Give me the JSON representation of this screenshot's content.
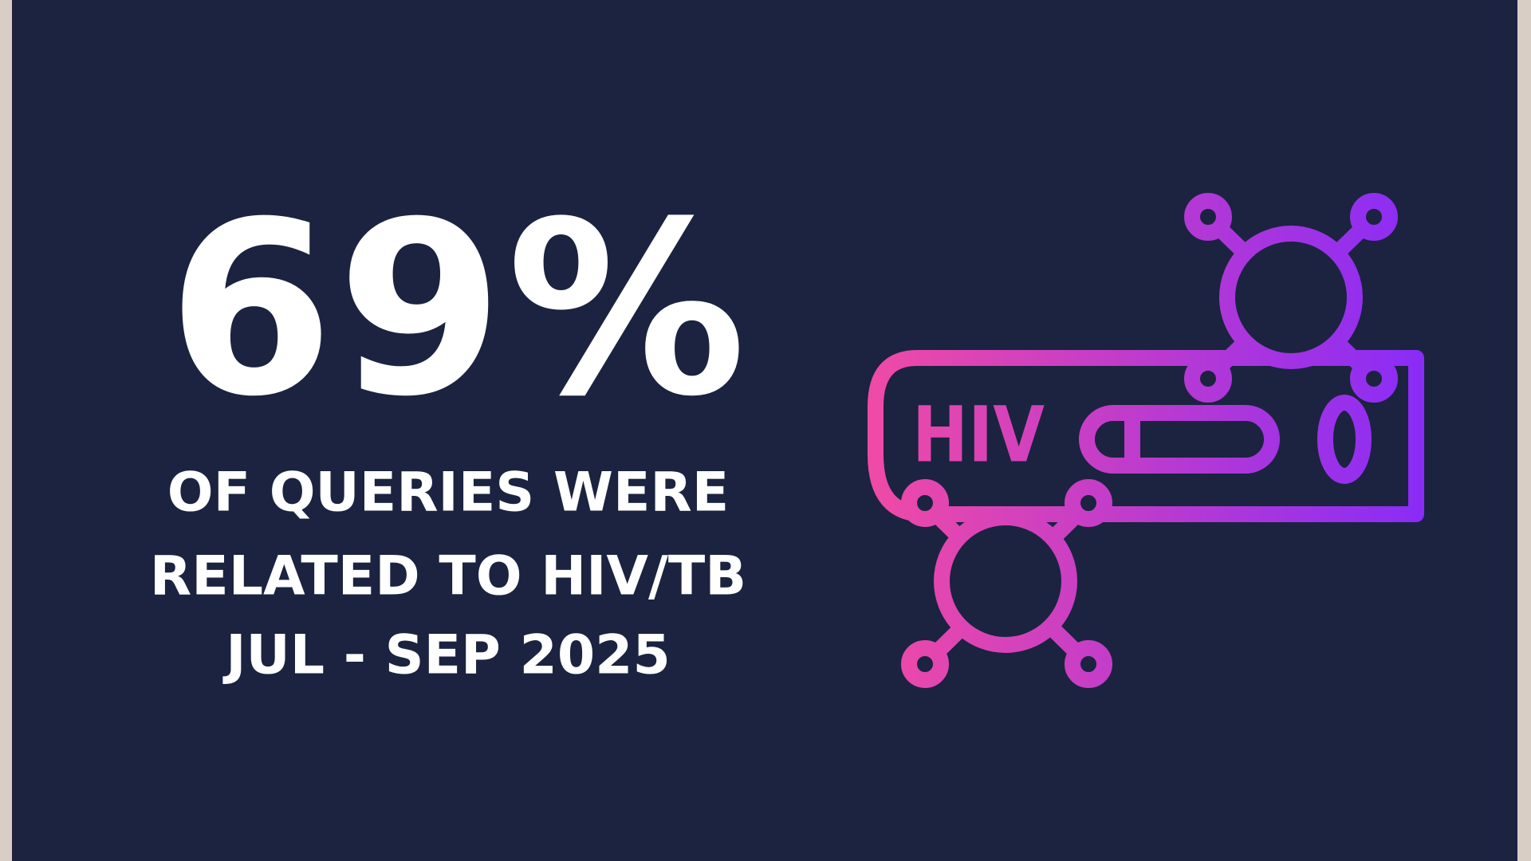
{
  "stat": {
    "value": "69%",
    "lines": [
      "OF QUERIES WERE",
      "RELATED TO HIV/TB",
      "JUL - SEP 2025"
    ]
  },
  "icon": {
    "label": "HIV"
  }
}
